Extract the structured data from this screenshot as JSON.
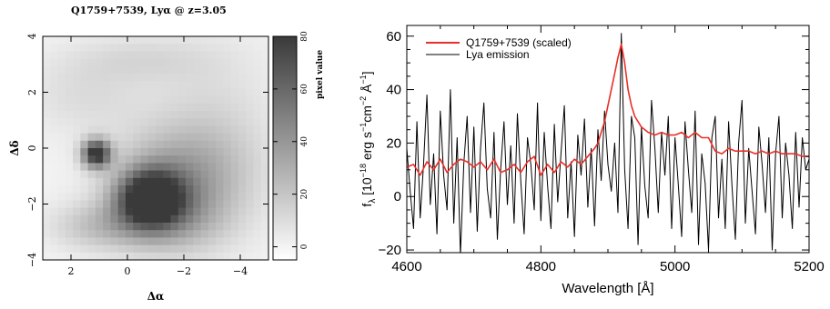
{
  "chart_data": [
    {
      "type": "heatmap",
      "title": "Q1759+7539, Lyα @ z=3.05",
      "xlabel": "Δα",
      "ylabel": "Δδ",
      "xlim": [
        3,
        -5
      ],
      "ylim": [
        -4,
        4
      ],
      "x_ticks": [
        2,
        0,
        -2,
        -4
      ],
      "y_ticks": [
        -4,
        -2,
        0,
        2,
        4
      ],
      "colorbar": {
        "label": "pixel value",
        "range": [
          -5,
          80
        ],
        "ticks": [
          0,
          20,
          40,
          60,
          80
        ],
        "colormap": [
          "#ffffff",
          "#3a3a3a"
        ]
      },
      "grid_cols": 30,
      "grid_rows": 30,
      "blobs": [
        {
          "x": 1.1,
          "y": -0.2,
          "sx": 0.35,
          "sy": 0.35,
          "amp": 85
        },
        {
          "x": -0.8,
          "y": -1.8,
          "sx": 0.8,
          "sy": 0.7,
          "amp": 85
        },
        {
          "x": -1.8,
          "y": -1.0,
          "sx": 1.6,
          "sy": 1.2,
          "amp": 30
        },
        {
          "x": -1.5,
          "y": -2.6,
          "sx": 1.4,
          "sy": 0.9,
          "amp": 25
        },
        {
          "x": 1.0,
          "y": -2.8,
          "sx": 1.2,
          "sy": 0.6,
          "amp": 20
        },
        {
          "x": -3.0,
          "y": 0.5,
          "sx": 1.6,
          "sy": 2.2,
          "amp": 12
        },
        {
          "x": 1.5,
          "y": 1.9,
          "sx": 1.5,
          "sy": 1.0,
          "amp": 10
        },
        {
          "x": -0.5,
          "y": 3.2,
          "sx": 1.8,
          "sy": 0.6,
          "amp": 10
        }
      ]
    },
    {
      "type": "line",
      "xlabel": "Wavelength [Å]",
      "ylabel_main": "f",
      "ylabel_sub": "λ",
      "ylabel_rest": " [10",
      "ylabel_exp1": "−18",
      "ylabel_mid1": " erg s",
      "ylabel_exp2": "−1",
      "ylabel_mid2": "cm",
      "ylabel_exp3": "−2",
      "ylabel_mid3": " Å",
      "ylabel_exp4": "−1",
      "ylabel_end": "]",
      "xlim": [
        4600,
        5200
      ],
      "ylim": [
        -21,
        64
      ],
      "x_ticks": [
        4600,
        4800,
        5000,
        5200
      ],
      "y_ticks": [
        -20,
        0,
        20,
        40,
        60
      ],
      "legend_position": "top-left",
      "series": [
        {
          "name": "Q1759+7539 (scaled)",
          "color": "#e8302a",
          "x": [
            4600,
            4610,
            4620,
            4630,
            4640,
            4650,
            4660,
            4670,
            4680,
            4690,
            4700,
            4710,
            4720,
            4730,
            4740,
            4750,
            4760,
            4770,
            4780,
            4790,
            4800,
            4810,
            4820,
            4830,
            4840,
            4850,
            4860,
            4870,
            4880,
            4885,
            4890,
            4895,
            4900,
            4905,
            4910,
            4915,
            4920,
            4925,
            4930,
            4935,
            4940,
            4950,
            4960,
            4970,
            4980,
            4990,
            5000,
            5010,
            5020,
            5030,
            5040,
            5050,
            5060,
            5070,
            5080,
            5090,
            5100,
            5110,
            5120,
            5130,
            5140,
            5150,
            5160,
            5170,
            5180,
            5190,
            5200
          ],
          "values": [
            11,
            12,
            8,
            13,
            10,
            14,
            9,
            12,
            14,
            13,
            11,
            13,
            10,
            14,
            9,
            10,
            12,
            9,
            13,
            15,
            8,
            12,
            9,
            13,
            11,
            14,
            12,
            15,
            18,
            20,
            24,
            28,
            34,
            40,
            46,
            52,
            57,
            50,
            40,
            34,
            30,
            26,
            24,
            23,
            24,
            23,
            23,
            24,
            22,
            24,
            22,
            22,
            17,
            16,
            18,
            17,
            17,
            17,
            16,
            17,
            16,
            17,
            16,
            16,
            16,
            15,
            15
          ]
        },
        {
          "name": "Lya emission",
          "color": "#000000",
          "x": [
            4600,
            4605,
            4610,
            4615,
            4620,
            4625,
            4630,
            4635,
            4640,
            4645,
            4650,
            4655,
            4660,
            4665,
            4670,
            4675,
            4680,
            4685,
            4690,
            4695,
            4700,
            4705,
            4710,
            4715,
            4720,
            4725,
            4730,
            4735,
            4740,
            4745,
            4750,
            4755,
            4760,
            4765,
            4770,
            4775,
            4780,
            4785,
            4790,
            4795,
            4800,
            4805,
            4810,
            4815,
            4820,
            4825,
            4830,
            4835,
            4840,
            4845,
            4850,
            4855,
            4860,
            4865,
            4870,
            4875,
            4880,
            4885,
            4890,
            4895,
            4900,
            4905,
            4910,
            4915,
            4920,
            4925,
            4930,
            4935,
            4940,
            4945,
            4950,
            4955,
            4960,
            4965,
            4970,
            4975,
            4980,
            4985,
            4990,
            4995,
            5000,
            5005,
            5010,
            5015,
            5020,
            5025,
            5030,
            5035,
            5040,
            5045,
            5050,
            5055,
            5060,
            5065,
            5070,
            5075,
            5080,
            5085,
            5090,
            5095,
            5100,
            5105,
            5110,
            5115,
            5120,
            5125,
            5130,
            5135,
            5140,
            5145,
            5150,
            5155,
            5160,
            5165,
            5170,
            5175,
            5180,
            5185,
            5190,
            5195,
            5200
          ],
          "values": [
            18,
            2,
            -12,
            28,
            -8,
            12,
            38,
            -3,
            16,
            -14,
            32,
            8,
            -5,
            40,
            -10,
            22,
            -22,
            12,
            30,
            -6,
            26,
            -13,
            18,
            35,
            3,
            -8,
            24,
            -16,
            10,
            28,
            -3,
            19,
            -10,
            31,
            6,
            -14,
            22,
            12,
            -5,
            35,
            -9,
            24,
            4,
            -12,
            27,
            -2,
            16,
            34,
            -8,
            13,
            -15,
            23,
            8,
            29,
            -4,
            18,
            -11,
            25,
            6,
            32,
            12,
            2,
            20,
            -6,
            61,
            10,
            -12,
            30,
            22,
            -18,
            26,
            4,
            -8,
            36,
            18,
            -6,
            24,
            8,
            30,
            -12,
            22,
            4,
            -15,
            28,
            10,
            -6,
            32,
            -18,
            16,
            5,
            -20,
            22,
            30,
            -8,
            14,
            -12,
            28,
            4,
            -16,
            20,
            36,
            -10,
            18,
            2,
            -14,
            26,
            12,
            -6,
            22,
            -20,
            16,
            30,
            -8,
            20,
            8,
            -12,
            24,
            -4,
            22,
            10,
            14
          ]
        }
      ]
    }
  ]
}
